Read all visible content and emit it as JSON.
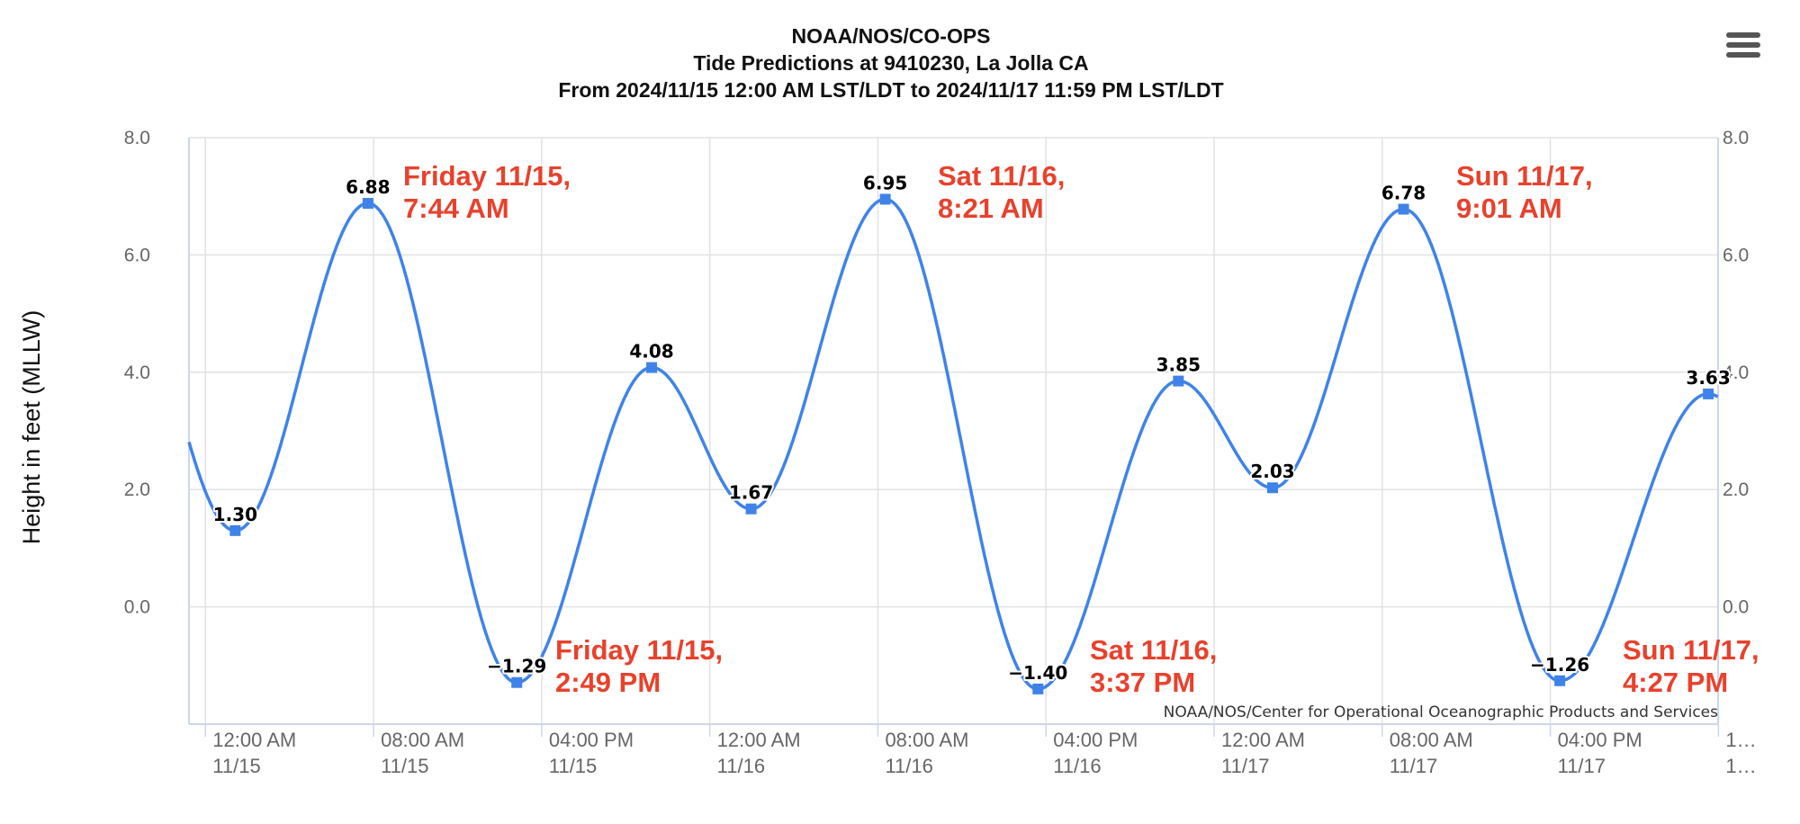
{
  "chart_data": {
    "type": "line",
    "title": "NOAA/NOS/CO-OPS",
    "subtitle": "Tide Predictions at 9410230, La Jolla CA",
    "subtitle2": "From 2024/11/15 12:00 AM LST/LDT to 2024/11/17 11:59 PM LST/LDT",
    "ylabel": "Height in feet (MLLW)",
    "ylim": [
      -2.0,
      8.0
    ],
    "yticks": [
      "8.0",
      "6.0",
      "4.0",
      "2.0",
      "0.0"
    ],
    "yticks_right": [
      "8.0",
      "6.0",
      "4.0",
      "2.0",
      "0.0"
    ],
    "xlim": [
      "2024-11-14 23:13",
      "2024-11-17 23:59"
    ],
    "xticks": [
      {
        "time": "2024-11-15 00:00",
        "line1": "12:00 AM",
        "line2": "11/15"
      },
      {
        "time": "2024-11-15 08:00",
        "line1": "08:00 AM",
        "line2": "11/15"
      },
      {
        "time": "2024-11-15 16:00",
        "line1": "04:00 PM",
        "line2": "11/15"
      },
      {
        "time": "2024-11-16 00:00",
        "line1": "12:00 AM",
        "line2": "11/16"
      },
      {
        "time": "2024-11-16 08:00",
        "line1": "08:00 AM",
        "line2": "11/16"
      },
      {
        "time": "2024-11-16 16:00",
        "line1": "04:00 PM",
        "line2": "11/16"
      },
      {
        "time": "2024-11-17 00:00",
        "line1": "12:00 AM",
        "line2": "11/17"
      },
      {
        "time": "2024-11-17 08:00",
        "line1": "08:00 AM",
        "line2": "11/17"
      },
      {
        "time": "2024-11-17 16:00",
        "line1": "04:00 PM",
        "line2": "11/17"
      },
      {
        "time": "2024-11-18 00:00",
        "line1": "1…",
        "line2": "1…"
      }
    ],
    "grid": true,
    "series": [
      {
        "color": "#3f83e8",
        "points": [
          {
            "t": "2024-11-15 01:25",
            "v": 1.3,
            "label": "1.30"
          },
          {
            "t": "2024-11-15 07:44",
            "v": 6.88,
            "label": "6.88"
          },
          {
            "t": "2024-11-15 14:49",
            "v": -1.29,
            "label": "−1.29"
          },
          {
            "t": "2024-11-15 21:14",
            "v": 4.08,
            "label": "4.08"
          },
          {
            "t": "2024-11-16 01:58",
            "v": 1.67,
            "label": "1.67"
          },
          {
            "t": "2024-11-16 08:21",
            "v": 6.95,
            "label": "6.95"
          },
          {
            "t": "2024-11-16 15:37",
            "v": -1.4,
            "label": "−1.40"
          },
          {
            "t": "2024-11-16 22:18",
            "v": 3.85,
            "label": "3.85"
          },
          {
            "t": "2024-11-17 02:47",
            "v": 2.03,
            "label": "2.03"
          },
          {
            "t": "2024-11-17 09:01",
            "v": 6.78,
            "label": "6.78"
          },
          {
            "t": "2024-11-17 16:27",
            "v": -1.26,
            "label": "−1.26"
          },
          {
            "t": "2024-11-17 23:31",
            "v": 3.63,
            "label": "3.63"
          }
        ]
      }
    ],
    "annotations": [
      {
        "line1": "Friday 11/15,",
        "line2": "7:44 AM"
      },
      {
        "line1": "Friday 11/15,",
        "line2": "2:49 PM"
      },
      {
        "line1": "Sat 11/16,",
        "line2": "8:21 AM"
      },
      {
        "line1": "Sat 11/16,",
        "line2": "3:37 PM"
      },
      {
        "line1": "Sun 11/17,",
        "line2": "9:01 AM"
      },
      {
        "line1": "Sun 11/17,",
        "line2": "4:27 PM"
      }
    ],
    "annotation_color": "#e8412c",
    "credits": "NOAA/NOS/Center for Operational Oceanographic Products and Services"
  },
  "menu": {
    "icon": "hamburger-menu-icon"
  }
}
